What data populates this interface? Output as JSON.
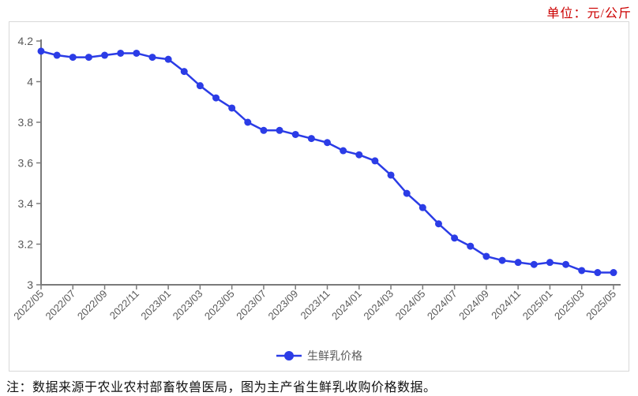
{
  "unit_label": "单位：元/公斤",
  "note_text": "注：数据来源于农业农村部畜牧兽医局，图为主产省生鲜乳收购价格数据。",
  "legend": {
    "label": "生鲜乳价格"
  },
  "colors": {
    "line": "#2b3ce6",
    "axis": "#7a7a7a",
    "tick_text": "#595959",
    "unit_text": "#cc0000",
    "note_text": "#111111",
    "border": "#d9d9d9",
    "legend_text": "#595959"
  },
  "chart_data": {
    "type": "line",
    "title": "",
    "xlabel": "",
    "ylabel": "",
    "unit": "元/公斤",
    "ylim": [
      3.0,
      4.2
    ],
    "y_ticks": [
      4.2,
      4.0,
      3.8,
      3.6,
      3.4,
      3.2,
      3.0
    ],
    "y_tick_labels": [
      "4.2",
      "4",
      "3.8",
      "3.6",
      "3.4",
      "3.2",
      "3"
    ],
    "x": [
      "2022/05",
      "2022/06",
      "2022/07",
      "2022/08",
      "2022/09",
      "2022/10",
      "2022/11",
      "2022/12",
      "2023/01",
      "2023/02",
      "2023/03",
      "2023/04",
      "2023/05",
      "2023/06",
      "2023/07",
      "2023/08",
      "2023/09",
      "2023/10",
      "2023/11",
      "2023/12",
      "2024/01",
      "2024/02",
      "2024/03",
      "2024/04",
      "2024/05",
      "2024/06",
      "2024/07",
      "2024/08",
      "2024/09",
      "2024/10",
      "2024/11",
      "2024/12",
      "2025/01",
      "2025/02",
      "2025/03",
      "2025/04",
      "2025/05"
    ],
    "x_tick_every": 2,
    "legend_position": "bottom",
    "grid": false,
    "series": [
      {
        "name": "生鲜乳价格",
        "values": [
          4.15,
          4.13,
          4.12,
          4.12,
          4.13,
          4.14,
          4.14,
          4.12,
          4.11,
          4.05,
          3.98,
          3.92,
          3.87,
          3.8,
          3.76,
          3.76,
          3.74,
          3.72,
          3.7,
          3.66,
          3.64,
          3.61,
          3.54,
          3.45,
          3.38,
          3.3,
          3.23,
          3.19,
          3.14,
          3.12,
          3.11,
          3.1,
          3.11,
          3.1,
          3.07,
          3.06,
          3.06
        ]
      }
    ]
  }
}
